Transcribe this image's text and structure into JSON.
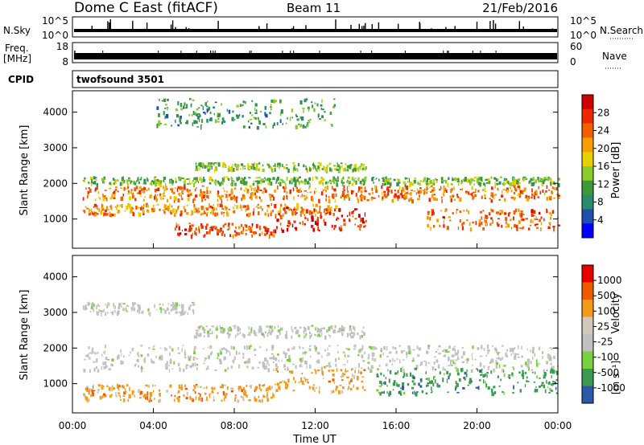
{
  "header": {
    "title": "Dome C East (fitACF)",
    "beam": "Beam 11",
    "date": "21/Feb/2016"
  },
  "chart_data": [
    {
      "type": "line",
      "panel": "noise",
      "left_label": "N.Sky",
      "right_label": "N.Search",
      "y_ticks_left": [
        "10^5",
        "10^0"
      ],
      "y_ticks_right": [
        "10^5",
        "10^0"
      ],
      "scale": "log"
    },
    {
      "type": "line",
      "panel": "frequency",
      "left_label": "Freq.",
      "left_unit": "[MHz]",
      "right_label": "Nave",
      "y_ticks_left": [
        "18",
        "8"
      ],
      "y_ticks_right": [
        "60",
        "0"
      ],
      "ylim": [
        8,
        18
      ]
    },
    {
      "type": "table",
      "panel": "cpid",
      "label": "CPID",
      "value": "twofsound 3501"
    },
    {
      "type": "heatmap",
      "panel": "power",
      "ylabel": "Slant Range [km]",
      "y_ticks": [
        "4000",
        "3000",
        "2000",
        "1000"
      ],
      "ylim": [
        180,
        4600
      ],
      "colorbar_label": "Power [dB]",
      "colorbar_ticks": [
        "28",
        "24",
        "20",
        "16",
        "12",
        "8",
        "4"
      ],
      "colors": [
        "#0000ff",
        "#1f4faa",
        "#2a8c6a",
        "#3c9a3a",
        "#8ccc2a",
        "#e8d000",
        "#f5a000",
        "#f06000",
        "#ee2800",
        "#d00000"
      ],
      "bands": [
        {
          "r0": 1550,
          "r1": 1950,
          "t0": 0.5,
          "t1": 24,
          "level": 0.75
        },
        {
          "r0": 1150,
          "r1": 1450,
          "t0": 0.5,
          "t1": 13,
          "level": 0.7
        },
        {
          "r0": 550,
          "r1": 900,
          "t0": 5,
          "t1": 10,
          "level": 0.85
        },
        {
          "r0": 700,
          "r1": 1350,
          "t0": 10,
          "t1": 14.5,
          "level": 0.9
        },
        {
          "r0": 750,
          "r1": 1300,
          "t0": 17.5,
          "t1": 24,
          "level": 0.8
        },
        {
          "r0": 2000,
          "r1": 2200,
          "t0": 0.5,
          "t1": 24,
          "level": 0.4
        },
        {
          "r0": 2400,
          "r1": 2600,
          "t0": 6,
          "t1": 14.5,
          "level": 0.45
        },
        {
          "r0": 3600,
          "r1": 4400,
          "t0": 4,
          "t1": 13,
          "level": 0.3
        }
      ]
    },
    {
      "type": "heatmap",
      "panel": "velocity",
      "xlabel": "Time UT",
      "ylabel": "Slant Range [km]",
      "y_ticks": [
        "4000",
        "3000",
        "2000",
        "1000"
      ],
      "ylim": [
        180,
        4600
      ],
      "x_ticks": [
        "00:00",
        "04:00",
        "08:00",
        "12:00",
        "16:00",
        "20:00",
        "00:00"
      ],
      "xlim": [
        0,
        24
      ],
      "colorbar_label": "Velocity",
      "colorbar_unit": "[m s⁻¹]",
      "colorbar_ticks": [
        "1000",
        "500",
        "100",
        "25",
        "-25",
        "-100",
        "-500",
        "-1000"
      ],
      "colors": [
        "#e80000",
        "#f05a00",
        "#f39a1a",
        "#d0c8b8",
        "#c0c0c0",
        "#7ad040",
        "#3a9a50",
        "#2a5aa8"
      ],
      "bands": [
        {
          "r0": 1400,
          "r1": 2100,
          "t0": 0.5,
          "t1": 24,
          "color": 4
        },
        {
          "r0": 550,
          "r1": 1000,
          "t0": 0.5,
          "t1": 10,
          "color": 2
        },
        {
          "r0": 800,
          "r1": 1500,
          "t0": 10,
          "t1": 14.5,
          "color": 2
        },
        {
          "r0": 750,
          "r1": 1450,
          "t0": 15,
          "t1": 24,
          "color": 6
        },
        {
          "r0": 2350,
          "r1": 2650,
          "t0": 6,
          "t1": 14.5,
          "color": 4
        },
        {
          "r0": 3000,
          "r1": 3300,
          "t0": 0.5,
          "t1": 6,
          "color": 4
        }
      ]
    }
  ]
}
